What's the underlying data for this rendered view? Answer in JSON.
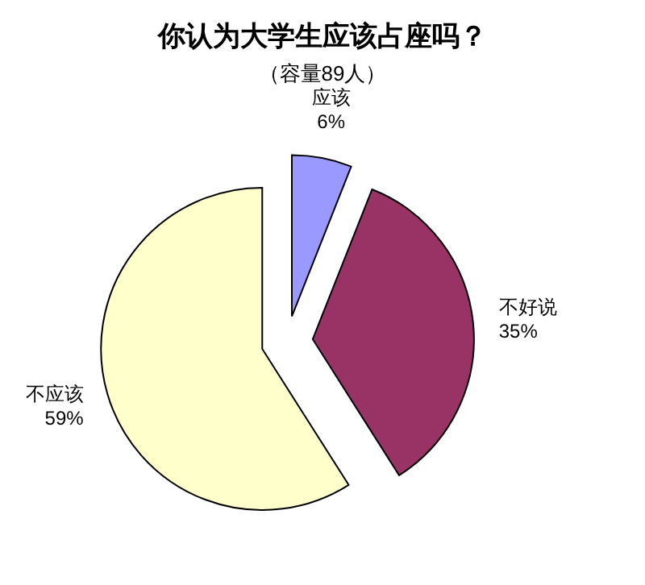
{
  "chart_data": {
    "type": "pie",
    "title": "你认为大学生应该占座吗？",
    "subtitle": "（容量89人）",
    "categories": [
      "应该",
      "不好说",
      "不应该"
    ],
    "values": [
      6,
      35,
      59
    ],
    "colors": [
      "#9999ff",
      "#993366",
      "#ffffcc"
    ],
    "value_labels": [
      "6%",
      "35%",
      "59%"
    ]
  }
}
